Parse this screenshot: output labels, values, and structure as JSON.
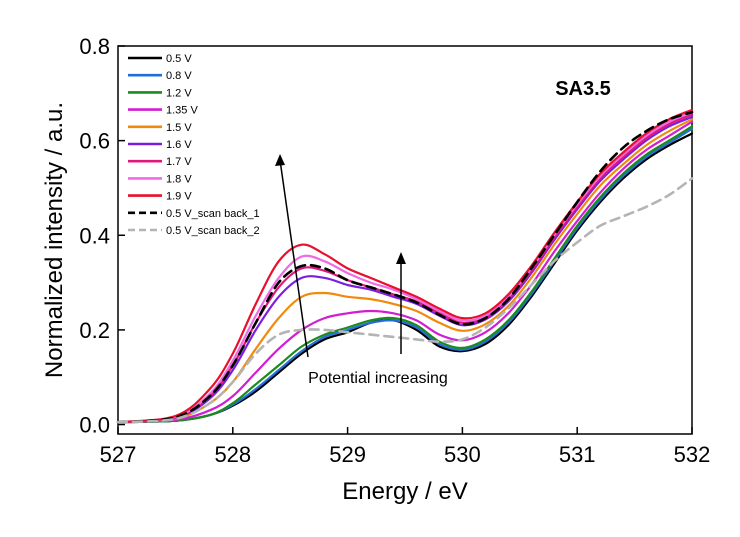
{
  "chart_data": {
    "type": "line",
    "title": "SA3.5",
    "xlabel": "Energy / eV",
    "ylabel": "Normalized intensity / a.u.",
    "xlim": [
      527,
      532
    ],
    "ylim": [
      -0.02,
      0.8
    ],
    "x_ticks": [
      527,
      528,
      529,
      530,
      531,
      532
    ],
    "y_ticks": [
      0.0,
      0.2,
      0.4,
      0.6,
      0.8
    ],
    "x_tick_labels": [
      "527",
      "528",
      "529",
      "530",
      "531",
      "532"
    ],
    "y_tick_labels": [
      "0.0",
      "0.2",
      "0.4",
      "0.6",
      "0.8"
    ],
    "legend_placement": "top-left",
    "annotation": "Potential increasing",
    "series": [
      {
        "name": "0.5 V",
        "color": "#000000",
        "dash": "solid",
        "x": [
          527.0,
          527.5,
          527.8,
          528.0,
          528.2,
          528.4,
          528.6,
          528.8,
          529.0,
          529.2,
          529.4,
          529.6,
          529.8,
          530.0,
          530.2,
          530.4,
          530.6,
          530.8,
          531.0,
          531.2,
          531.4,
          531.6,
          531.8,
          532.0
        ],
        "y": [
          0.005,
          0.008,
          0.02,
          0.04,
          0.07,
          0.11,
          0.15,
          0.18,
          0.195,
          0.215,
          0.22,
          0.2,
          0.165,
          0.155,
          0.17,
          0.21,
          0.27,
          0.34,
          0.41,
          0.47,
          0.52,
          0.56,
          0.59,
          0.615
        ]
      },
      {
        "name": "0.8 V",
        "color": "#1f6fd6",
        "dash": "solid",
        "x": [
          527.0,
          527.5,
          527.8,
          528.0,
          528.2,
          528.4,
          528.6,
          528.8,
          529.0,
          529.2,
          529.4,
          529.6,
          529.8,
          530.0,
          530.2,
          530.4,
          530.6,
          530.8,
          531.0,
          531.2,
          531.4,
          531.6,
          531.8,
          532.0
        ],
        "y": [
          0.005,
          0.008,
          0.02,
          0.042,
          0.075,
          0.115,
          0.155,
          0.185,
          0.2,
          0.215,
          0.22,
          0.205,
          0.17,
          0.158,
          0.175,
          0.215,
          0.275,
          0.345,
          0.415,
          0.475,
          0.525,
          0.565,
          0.595,
          0.625
        ]
      },
      {
        "name": "1.2 V",
        "color": "#1e8a1e",
        "dash": "solid",
        "x": [
          527.0,
          527.5,
          527.8,
          528.0,
          528.2,
          528.4,
          528.6,
          528.8,
          529.0,
          529.2,
          529.4,
          529.6,
          529.8,
          530.0,
          530.2,
          530.4,
          530.6,
          530.8,
          531.0,
          531.2,
          531.4,
          531.6,
          531.8,
          532.0
        ],
        "y": [
          0.005,
          0.008,
          0.02,
          0.045,
          0.085,
          0.125,
          0.165,
          0.19,
          0.205,
          0.22,
          0.225,
          0.21,
          0.175,
          0.162,
          0.18,
          0.22,
          0.28,
          0.35,
          0.42,
          0.48,
          0.53,
          0.57,
          0.6,
          0.63
        ]
      },
      {
        "name": "1.35 V",
        "color": "#d21ed2",
        "dash": "solid",
        "x": [
          527.0,
          527.5,
          527.8,
          528.0,
          528.2,
          528.4,
          528.6,
          528.8,
          529.0,
          529.2,
          529.4,
          529.6,
          529.8,
          530.0,
          530.2,
          530.4,
          530.6,
          530.8,
          531.0,
          531.2,
          531.4,
          531.6,
          531.8,
          532.0
        ],
        "y": [
          0.005,
          0.01,
          0.03,
          0.06,
          0.11,
          0.16,
          0.2,
          0.225,
          0.235,
          0.24,
          0.235,
          0.22,
          0.19,
          0.178,
          0.195,
          0.235,
          0.295,
          0.365,
          0.43,
          0.49,
          0.54,
          0.58,
          0.61,
          0.64
        ]
      },
      {
        "name": "1.5 V",
        "color": "#f08a0c",
        "dash": "solid",
        "x": [
          527.0,
          527.5,
          527.8,
          528.0,
          528.2,
          528.4,
          528.6,
          528.8,
          529.0,
          529.2,
          529.4,
          529.6,
          529.8,
          530.0,
          530.2,
          530.4,
          530.6,
          530.8,
          531.0,
          531.2,
          531.4,
          531.6,
          531.8,
          532.0
        ],
        "y": [
          0.005,
          0.012,
          0.045,
          0.09,
          0.16,
          0.225,
          0.27,
          0.278,
          0.27,
          0.265,
          0.255,
          0.24,
          0.215,
          0.198,
          0.212,
          0.25,
          0.31,
          0.38,
          0.445,
          0.505,
          0.55,
          0.59,
          0.62,
          0.645
        ]
      },
      {
        "name": "1.6 V",
        "color": "#7a1ee0",
        "dash": "solid",
        "x": [
          527.0,
          527.5,
          527.8,
          528.0,
          528.2,
          528.4,
          528.6,
          528.8,
          529.0,
          529.2,
          529.4,
          529.6,
          529.8,
          530.0,
          530.2,
          530.4,
          530.6,
          530.8,
          531.0,
          531.2,
          531.4,
          531.6,
          531.8,
          532.0
        ],
        "y": [
          0.005,
          0.014,
          0.055,
          0.115,
          0.2,
          0.27,
          0.31,
          0.31,
          0.295,
          0.285,
          0.27,
          0.255,
          0.23,
          0.21,
          0.222,
          0.26,
          0.32,
          0.39,
          0.455,
          0.515,
          0.56,
          0.6,
          0.63,
          0.65
        ]
      },
      {
        "name": "1.7 V",
        "color": "#e0187a",
        "dash": "solid",
        "x": [
          527.0,
          527.5,
          527.8,
          528.0,
          528.2,
          528.4,
          528.6,
          528.8,
          529.0,
          529.2,
          529.4,
          529.6,
          529.8,
          530.0,
          530.2,
          530.4,
          530.6,
          530.8,
          531.0,
          531.2,
          531.4,
          531.6,
          531.8,
          532.0
        ],
        "y": [
          0.005,
          0.015,
          0.06,
          0.125,
          0.215,
          0.29,
          0.33,
          0.325,
          0.305,
          0.29,
          0.275,
          0.26,
          0.235,
          0.215,
          0.226,
          0.265,
          0.325,
          0.395,
          0.46,
          0.52,
          0.565,
          0.605,
          0.635,
          0.655
        ]
      },
      {
        "name": "1.8 V",
        "color": "#f06ae6",
        "dash": "solid",
        "x": [
          527.0,
          527.5,
          527.8,
          528.0,
          528.2,
          528.4,
          528.6,
          528.8,
          529.0,
          529.2,
          529.4,
          529.6,
          529.8,
          530.0,
          530.2,
          530.4,
          530.6,
          530.8,
          531.0,
          531.2,
          531.4,
          531.6,
          531.8,
          532.0
        ],
        "y": [
          0.005,
          0.016,
          0.065,
          0.135,
          0.23,
          0.31,
          0.355,
          0.345,
          0.32,
          0.3,
          0.285,
          0.265,
          0.24,
          0.22,
          0.23,
          0.27,
          0.33,
          0.4,
          0.465,
          0.525,
          0.57,
          0.61,
          0.64,
          0.66
        ]
      },
      {
        "name": "1.9 V",
        "color": "#e8102e",
        "dash": "solid",
        "x": [
          527.0,
          527.5,
          527.8,
          528.0,
          528.2,
          528.4,
          528.6,
          528.8,
          529.0,
          529.2,
          529.4,
          529.6,
          529.8,
          530.0,
          530.2,
          530.4,
          530.6,
          530.8,
          531.0,
          531.2,
          531.4,
          531.6,
          531.8,
          532.0
        ],
        "y": [
          0.005,
          0.018,
          0.075,
          0.15,
          0.255,
          0.345,
          0.38,
          0.36,
          0.33,
          0.31,
          0.29,
          0.27,
          0.245,
          0.225,
          0.235,
          0.275,
          0.335,
          0.405,
          0.47,
          0.53,
          0.575,
          0.615,
          0.645,
          0.665
        ]
      },
      {
        "name": "0.5 V_scan back_1",
        "color": "#000000",
        "dash": "dashed",
        "x": [
          527.0,
          527.5,
          527.8,
          528.0,
          528.2,
          528.4,
          528.6,
          528.8,
          529.0,
          529.2,
          529.4,
          529.6,
          529.8,
          530.0,
          530.2,
          530.4,
          530.6,
          530.8,
          531.0,
          531.2,
          531.4,
          531.6,
          531.8,
          532.0
        ],
        "y": [
          0.005,
          0.015,
          0.06,
          0.125,
          0.215,
          0.3,
          0.335,
          0.33,
          0.305,
          0.29,
          0.275,
          0.258,
          0.232,
          0.212,
          0.225,
          0.265,
          0.33,
          0.4,
          0.47,
          0.535,
          0.585,
          0.62,
          0.645,
          0.66
        ]
      },
      {
        "name": "0.5 V_scan back_2",
        "color": "#b4b4b4",
        "dash": "dashed",
        "x": [
          527.0,
          527.5,
          527.8,
          528.0,
          528.2,
          528.4,
          528.6,
          528.8,
          529.0,
          529.2,
          529.4,
          529.6,
          529.8,
          530.0,
          530.2,
          530.4,
          530.6,
          530.8,
          531.0,
          531.2,
          531.4,
          531.6,
          531.8,
          532.0
        ],
        "y": [
          0.005,
          0.012,
          0.045,
          0.09,
          0.15,
          0.19,
          0.2,
          0.2,
          0.195,
          0.19,
          0.185,
          0.18,
          0.175,
          0.18,
          0.205,
          0.245,
          0.295,
          0.345,
          0.385,
          0.42,
          0.44,
          0.46,
          0.485,
          0.52
        ]
      }
    ]
  }
}
